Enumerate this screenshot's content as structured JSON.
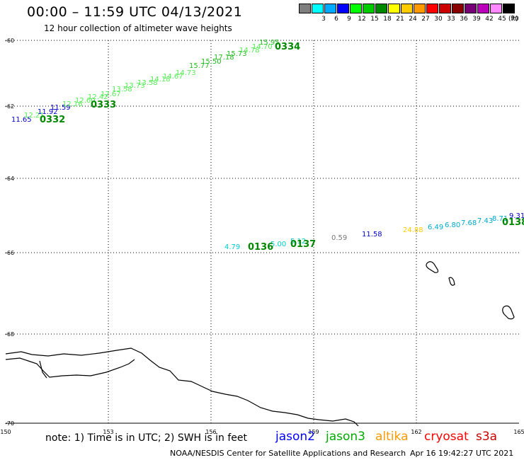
{
  "header": {
    "title": "00:00 – 11:59 UTC 04/13/2021",
    "subtitle": "12 hour collection of altimeter wave heights"
  },
  "legend": {
    "unit": "(ft)",
    "swatches": [
      {
        "color": "#7f7f7f",
        "label": ""
      },
      {
        "color": "#00ffff",
        "label": "3"
      },
      {
        "color": "#00aaff",
        "label": "6"
      },
      {
        "color": "#0000ff",
        "label": "9"
      },
      {
        "color": "#00ff00",
        "label": "12"
      },
      {
        "color": "#00cc00",
        "label": "15"
      },
      {
        "color": "#008800",
        "label": "18"
      },
      {
        "color": "#ffff00",
        "label": "21"
      },
      {
        "color": "#ffcc00",
        "label": "24"
      },
      {
        "color": "#ff9900",
        "label": "27"
      },
      {
        "color": "#ff0000",
        "label": "30"
      },
      {
        "color": "#cc0000",
        "label": "33"
      },
      {
        "color": "#880000",
        "label": "36"
      },
      {
        "color": "#770077",
        "label": "39"
      },
      {
        "color": "#bb00bb",
        "label": "42"
      },
      {
        "color": "#ff88ff",
        "label": "45"
      },
      {
        "color": "#000000",
        "label": "70"
      }
    ]
  },
  "axes": {
    "lon_ticks": [
      "150",
      "153",
      "156",
      "159",
      "162",
      "165"
    ],
    "lat_ticks": [
      "-60",
      "-62",
      "-64",
      "-66",
      "-68",
      "-70"
    ]
  },
  "tracks": [
    {
      "pass": "0332",
      "color": "#008800",
      "points": [
        {
          "v": "11.65",
          "c": "#0000cc"
        },
        {
          "v": "12.21",
          "c": "#55ee55"
        },
        {
          "v": "11.92",
          "c": "#0000cc"
        }
      ]
    },
    {
      "pass": "0333",
      "color": "#008800",
      "points": [
        {
          "v": "11.59",
          "c": "#0000cc"
        },
        {
          "v": "12.16",
          "c": "#55ee55"
        },
        {
          "v": "12.60",
          "c": "#55ee55"
        },
        {
          "v": "12.42",
          "c": "#55ee55"
        },
        {
          "v": "12.67",
          "c": "#55ee55"
        },
        {
          "v": "13.58",
          "c": "#55ee55"
        },
        {
          "v": "13.73",
          "c": "#55ee55"
        },
        {
          "v": "13.58",
          "c": "#55ee55"
        },
        {
          "v": "14.18",
          "c": "#55ee55"
        },
        {
          "v": "14.67",
          "c": "#55ee55"
        },
        {
          "v": "14.73",
          "c": "#55ee55"
        }
      ]
    },
    {
      "pass": "0334",
      "color": "#008800",
      "points": [
        {
          "v": "15.77",
          "c": "#22bb22"
        },
        {
          "v": "15.50",
          "c": "#22bb22"
        },
        {
          "v": "17.18",
          "c": "#22bb22"
        },
        {
          "v": "15.73",
          "c": "#22bb22"
        },
        {
          "v": "14.78",
          "c": "#55ee55"
        },
        {
          "v": "14.70",
          "c": "#55ee55"
        },
        {
          "v": "15.95",
          "c": "#22bb22"
        }
      ]
    },
    {
      "pass": "0136",
      "color": "#008800",
      "points": [
        {
          "v": "4.79",
          "c": "#00cccc"
        },
        {
          "v": "5.00",
          "c": "#00cccc"
        }
      ]
    },
    {
      "pass": "0137",
      "color": "#008800",
      "points": [
        {
          "v": "5.12",
          "c": "#00cccc"
        },
        {
          "v": "0.59",
          "c": "#777777"
        },
        {
          "v": "11.58",
          "c": "#0000cc"
        }
      ]
    },
    {
      "pass": "0138",
      "color": "#008800",
      "points": [
        {
          "v": "24.88",
          "c": "#ffcc00"
        },
        {
          "v": "6.49",
          "c": "#00aacc"
        },
        {
          "v": "6.80",
          "c": "#00aacc"
        },
        {
          "v": "7.68",
          "c": "#00aacc"
        },
        {
          "v": "7.43",
          "c": "#00aacc"
        },
        {
          "v": "8.71",
          "c": "#00aacc"
        },
        {
          "v": "9.31",
          "c": "#0000cc"
        }
      ]
    }
  ],
  "footer": {
    "note": "note:  1) Time is in UTC;  2) SWH is in feet",
    "satellites": [
      {
        "name": "jason2",
        "color": "#0000ff"
      },
      {
        "name": "jason3",
        "color": "#00aa00"
      },
      {
        "name": "altika",
        "color": "#ff9900"
      },
      {
        "name": "cryosat",
        "color": "#ff0000"
      },
      {
        "name": "s3a",
        "color": "#cc0000"
      }
    ],
    "credit": "NOAA/NESDIS Center for Satellite Applications and Research",
    "timestamp": "Apr 16 19:42:27 UTC 2021"
  }
}
